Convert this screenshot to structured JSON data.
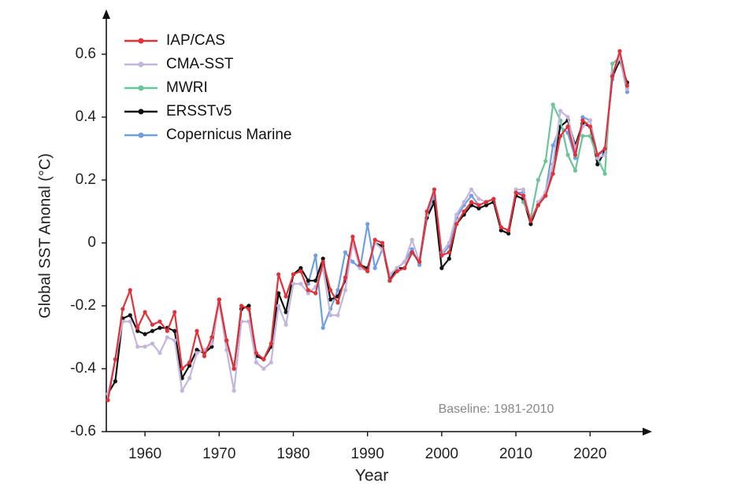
{
  "chart_data": {
    "type": "line",
    "ylabel": "Global SST Anonal (°C)",
    "xlabel": "Year",
    "annotation": "Baseline: 1981-2010",
    "xlim": [
      1955,
      2028
    ],
    "ylim": [
      -0.6,
      0.7
    ],
    "xticks": [
      1960,
      1970,
      1980,
      1990,
      2000,
      2010,
      2020
    ],
    "yticks": [
      -0.6,
      -0.4,
      -0.2,
      0,
      0.2,
      0.4,
      0.6
    ],
    "legend": "upper-left",
    "x": [
      1955,
      1956,
      1957,
      1958,
      1959,
      1960,
      1961,
      1962,
      1963,
      1964,
      1965,
      1966,
      1967,
      1968,
      1969,
      1970,
      1971,
      1972,
      1973,
      1974,
      1975,
      1976,
      1977,
      1978,
      1979,
      1980,
      1981,
      1982,
      1983,
      1984,
      1985,
      1986,
      1987,
      1988,
      1989,
      1990,
      1991,
      1992,
      1993,
      1994,
      1995,
      1996,
      1997,
      1998,
      1999,
      2000,
      2001,
      2002,
      2003,
      2004,
      2005,
      2006,
      2007,
      2008,
      2009,
      2010,
      2011,
      2012,
      2013,
      2014,
      2015,
      2016,
      2017,
      2018,
      2019,
      2020,
      2021,
      2022,
      2023,
      2024,
      2025
    ],
    "series": [
      {
        "name": "IAP/CAS",
        "color": "#e0323a",
        "values": [
          -0.5,
          -0.37,
          -0.21,
          -0.15,
          -0.27,
          -0.22,
          -0.26,
          -0.25,
          -0.28,
          -0.22,
          -0.4,
          -0.38,
          -0.28,
          -0.36,
          -0.3,
          -0.18,
          -0.31,
          -0.4,
          -0.2,
          -0.21,
          -0.35,
          -0.37,
          -0.32,
          -0.1,
          -0.17,
          -0.1,
          -0.09,
          -0.15,
          -0.16,
          -0.06,
          -0.15,
          -0.19,
          -0.11,
          0.02,
          -0.07,
          -0.09,
          0.01,
          0.0,
          -0.12,
          -0.09,
          -0.08,
          -0.03,
          -0.06,
          0.1,
          0.17,
          -0.04,
          -0.03,
          0.06,
          0.1,
          0.13,
          0.12,
          0.13,
          0.14,
          0.05,
          0.04,
          0.16,
          0.15,
          0.07,
          0.12,
          0.15,
          0.22,
          0.34,
          0.37,
          0.28,
          0.39,
          0.37,
          0.28,
          0.3,
          0.53,
          0.61,
          0.5
        ]
      },
      {
        "name": "CMA-SST",
        "color": "#c4b5dc",
        "values": [
          -0.48,
          -0.37,
          -0.25,
          -0.25,
          -0.33,
          -0.33,
          -0.32,
          -0.35,
          -0.3,
          -0.31,
          -0.47,
          -0.43,
          -0.35,
          -0.34,
          -0.32,
          -0.19,
          -0.34,
          -0.47,
          -0.25,
          -0.25,
          -0.38,
          -0.4,
          -0.38,
          -0.2,
          -0.26,
          -0.13,
          -0.13,
          -0.16,
          -0.14,
          -0.08,
          -0.23,
          -0.23,
          -0.15,
          0.0,
          -0.08,
          -0.09,
          0.0,
          -0.02,
          -0.1,
          -0.08,
          -0.06,
          0.01,
          -0.06,
          0.09,
          0.17,
          -0.03,
          0.0,
          0.09,
          0.13,
          0.17,
          0.14,
          0.13,
          0.14,
          0.05,
          0.04,
          0.17,
          0.17,
          0.07,
          0.13,
          0.16,
          0.25,
          0.42,
          0.4,
          0.3,
          0.37,
          0.39,
          0.27,
          0.28,
          0.54,
          0.59,
          0.49
        ]
      },
      {
        "name": "MWRI",
        "color": "#6cc49a",
        "values": [
          null,
          null,
          null,
          null,
          null,
          null,
          null,
          null,
          null,
          null,
          null,
          null,
          null,
          null,
          null,
          null,
          null,
          null,
          null,
          null,
          null,
          null,
          null,
          null,
          null,
          null,
          null,
          null,
          null,
          null,
          null,
          null,
          null,
          null,
          null,
          null,
          null,
          null,
          null,
          null,
          null,
          null,
          null,
          null,
          null,
          null,
          null,
          null,
          null,
          null,
          null,
          null,
          null,
          null,
          null,
          null,
          0.13,
          0.08,
          0.2,
          0.26,
          0.44,
          0.39,
          0.28,
          0.23,
          0.34,
          0.34,
          0.27,
          0.22,
          0.57,
          0.59,
          0.49
        ]
      },
      {
        "name": "ERSSTv5",
        "color": "#111111",
        "values": [
          -0.48,
          -0.44,
          -0.24,
          -0.23,
          -0.28,
          -0.29,
          -0.28,
          -0.27,
          -0.27,
          -0.28,
          -0.43,
          -0.39,
          -0.34,
          -0.35,
          -0.33,
          -0.18,
          -0.31,
          -0.4,
          -0.21,
          -0.2,
          -0.36,
          -0.37,
          -0.33,
          -0.16,
          -0.22,
          -0.1,
          -0.08,
          -0.12,
          -0.12,
          -0.05,
          -0.18,
          -0.17,
          -0.12,
          0.0,
          -0.07,
          -0.08,
          0.0,
          -0.01,
          -0.12,
          -0.08,
          -0.08,
          -0.03,
          -0.06,
          0.08,
          0.13,
          -0.08,
          -0.05,
          0.06,
          0.09,
          0.12,
          0.11,
          0.12,
          0.13,
          0.04,
          0.03,
          0.15,
          0.14,
          0.06,
          0.12,
          0.15,
          0.25,
          0.37,
          0.39,
          0.31,
          0.38,
          0.37,
          0.25,
          0.29,
          0.53,
          0.58,
          0.51
        ]
      },
      {
        "name": "Copernicus Marine",
        "color": "#6f9fe0",
        "values": [
          null,
          null,
          null,
          null,
          null,
          null,
          null,
          null,
          null,
          null,
          null,
          null,
          null,
          null,
          null,
          null,
          null,
          null,
          null,
          null,
          null,
          null,
          null,
          null,
          null,
          null,
          null,
          -0.13,
          -0.04,
          -0.27,
          -0.21,
          -0.15,
          -0.03,
          -0.06,
          -0.08,
          0.06,
          -0.08,
          -0.02,
          -0.11,
          -0.08,
          -0.06,
          -0.02,
          -0.07,
          0.09,
          0.15,
          -0.04,
          -0.01,
          0.08,
          0.12,
          0.15,
          0.12,
          0.13,
          0.14,
          0.05,
          0.04,
          0.16,
          0.16,
          0.07,
          0.12,
          0.16,
          0.31,
          0.37,
          0.35,
          0.27,
          0.4,
          0.39,
          0.28,
          0.29,
          0.52,
          0.59,
          0.48
        ]
      }
    ]
  }
}
